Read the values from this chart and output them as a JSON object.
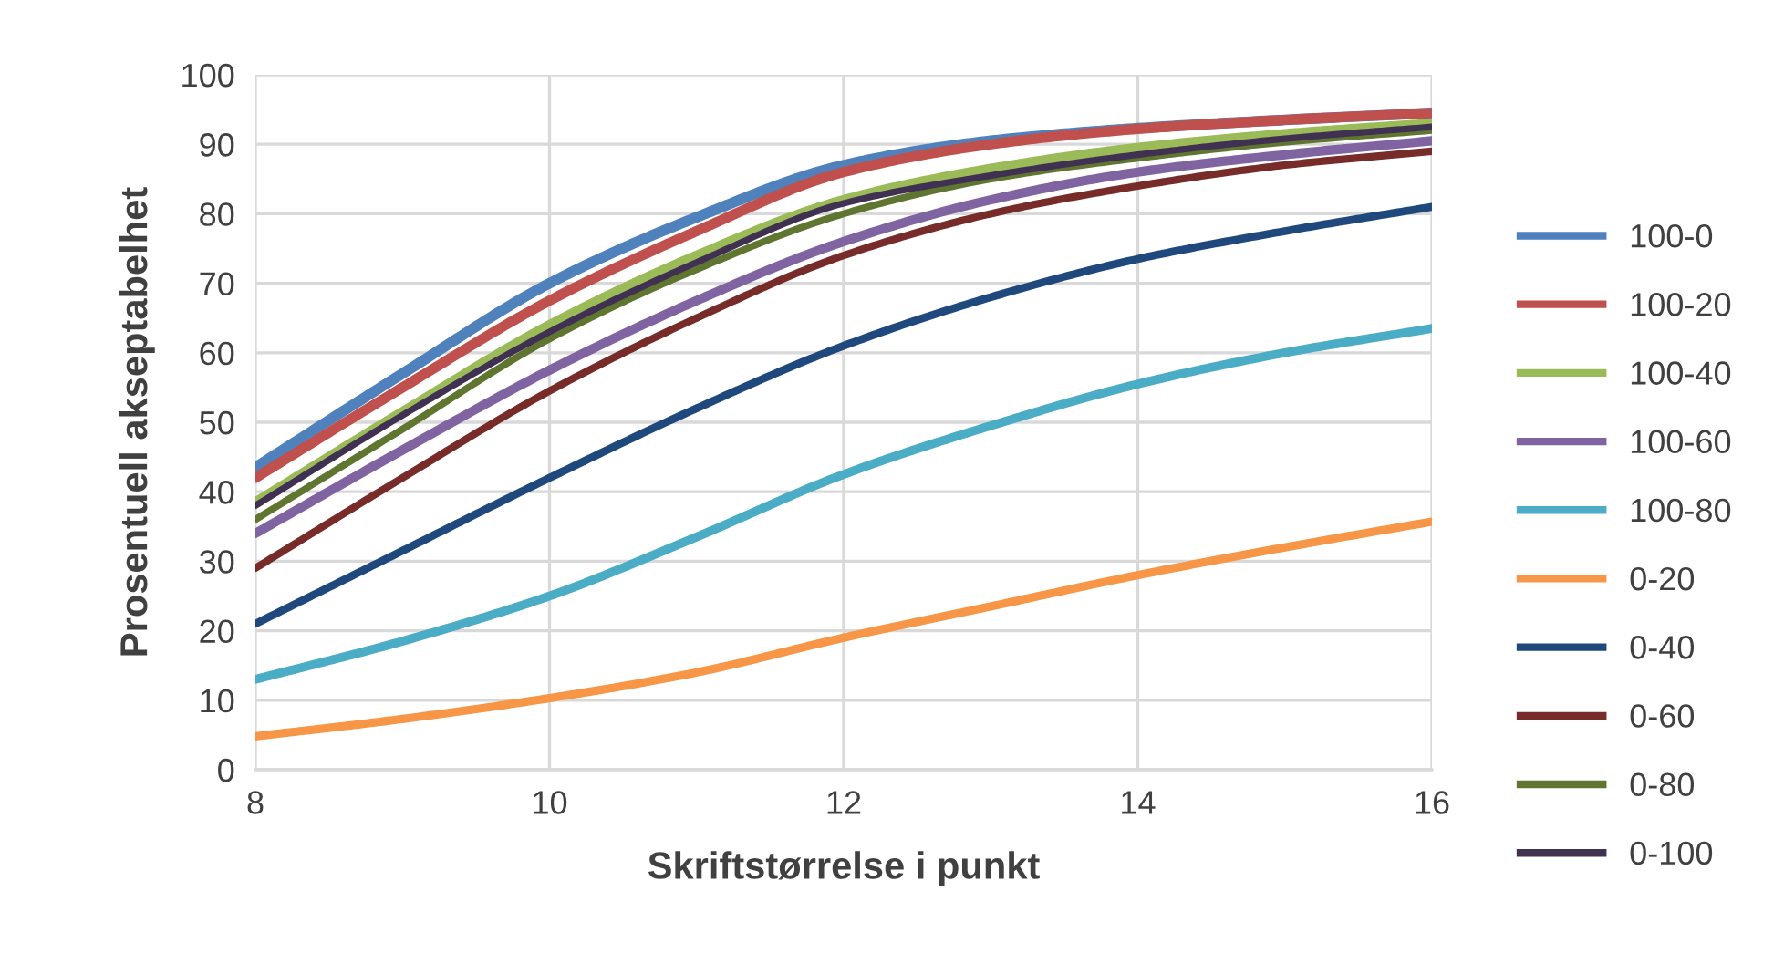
{
  "chart_data": {
    "type": "line",
    "xlabel": "Skriftstørrelse i punkt",
    "ylabel": "Prosentuell akseptabelhet",
    "x": [
      8,
      9,
      10,
      11,
      12,
      13,
      14,
      15,
      16
    ],
    "xlim": [
      8,
      16
    ],
    "xticks": [
      8,
      10,
      12,
      14,
      16
    ],
    "ylim": [
      0,
      100
    ],
    "yticks": [
      0,
      10,
      20,
      30,
      40,
      50,
      60,
      70,
      80,
      90,
      100
    ],
    "grid": true,
    "legend": "right",
    "marker": "none",
    "line_style": "solid",
    "series": [
      {
        "name": "100-0",
        "color": "#4f81bd",
        "values": [
          43.5,
          57,
          70,
          79.5,
          87,
          90.5,
          92.3,
          93.5,
          94.5
        ]
      },
      {
        "name": "100-20",
        "color": "#c0504d",
        "values": [
          42,
          55,
          67.5,
          77.5,
          86,
          90,
          92.2,
          93.5,
          94.5
        ]
      },
      {
        "name": "100-40",
        "color": "#9bbb59",
        "values": [
          38.5,
          51.5,
          64,
          74,
          82,
          86.5,
          89.5,
          91.5,
          93
        ]
      },
      {
        "name": "100-60",
        "color": "#8064a2",
        "values": [
          34,
          46,
          57.5,
          67.5,
          76,
          82,
          86,
          88.5,
          90.5
        ]
      },
      {
        "name": "100-80",
        "color": "#4bacc6",
        "values": [
          13,
          18.5,
          25,
          33.5,
          42.5,
          49.5,
          55.5,
          60,
          63.5
        ]
      },
      {
        "name": "0-20",
        "color": "#f79646",
        "values": [
          4.8,
          7.3,
          10.3,
          14,
          19,
          23.5,
          28,
          32,
          35.7
        ]
      },
      {
        "name": "0-40",
        "color": "#1f497d",
        "values": [
          21,
          31.5,
          42,
          52,
          61,
          68,
          73.5,
          77.5,
          81
        ]
      },
      {
        "name": "0-60",
        "color": "#772c2a",
        "values": [
          29,
          42,
          54.5,
          65,
          74,
          80,
          84,
          87,
          89
        ]
      },
      {
        "name": "0-80",
        "color": "#5f7530",
        "values": [
          36,
          49,
          62,
          72,
          80,
          85,
          88,
          90.3,
          92
        ]
      },
      {
        "name": "0-100",
        "color": "#403152",
        "values": [
          38,
          51,
          63,
          73,
          81.5,
          85.5,
          88.5,
          90.8,
          92.5
        ]
      }
    ]
  }
}
